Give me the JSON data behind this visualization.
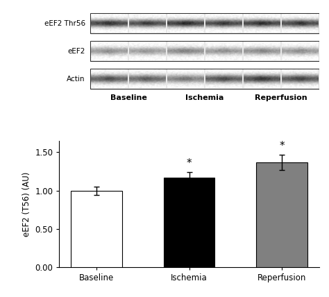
{
  "categories": [
    "Baseline",
    "Ischemia",
    "Reperfusion"
  ],
  "values": [
    1.0,
    1.17,
    1.37
  ],
  "errors": [
    0.055,
    0.07,
    0.1
  ],
  "bar_colors": [
    "#ffffff",
    "#000000",
    "#808080"
  ],
  "bar_edgecolors": [
    "#000000",
    "#000000",
    "#000000"
  ],
  "ylabel": "eEF2 (T56) (AU)",
  "ylim": [
    0.0,
    1.65
  ],
  "yticks": [
    0.0,
    0.5,
    1.0,
    1.5
  ],
  "ytick_labels": [
    "0.00",
    "0.50",
    "1.00",
    "1.50"
  ],
  "significance": [
    false,
    true,
    true
  ],
  "blot_labels": [
    "eEF2 Thr56",
    "eEF2",
    "Actin"
  ],
  "blot_group_labels": [
    "Baseline",
    "Ischemia",
    "Reperfusion"
  ],
  "background_color": "#ffffff",
  "bar_width": 0.55,
  "figure_width": 4.74,
  "figure_height": 4.28
}
